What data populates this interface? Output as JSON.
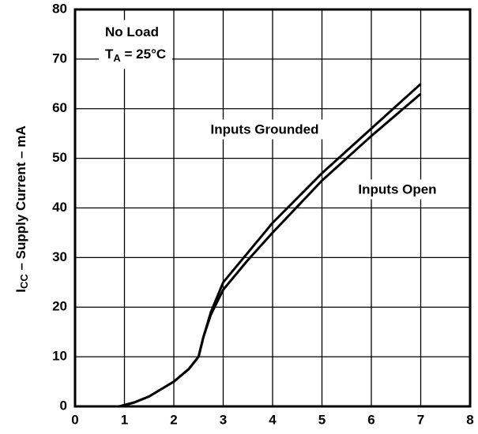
{
  "chart_data": {
    "type": "line",
    "ylabel": {
      "main": "I",
      "sub": "CC",
      "rest": " – Supply Current – mA"
    },
    "annotations": [
      {
        "main": "No Load"
      },
      {
        "main": "T",
        "sub": "A",
        "rest": " = 25°C"
      }
    ],
    "x": [
      0.9,
      1.2,
      1.5,
      2,
      2.3,
      2.5,
      2.6,
      2.75,
      3,
      3.5,
      4,
      5,
      6,
      7
    ],
    "series": [
      {
        "name": "Inputs Grounded",
        "color": "#000000",
        "values": [
          0,
          0.8,
          2,
          5,
          7.5,
          10,
          14,
          19,
          25,
          31,
          37,
          47,
          56,
          65
        ]
      },
      {
        "name": "Inputs Open",
        "color": "#000000",
        "values": [
          0,
          0.8,
          2,
          5,
          7.5,
          10,
          14,
          18.5,
          23.5,
          29.5,
          35,
          45.5,
          54.5,
          63
        ]
      }
    ],
    "xlim": [
      0,
      8
    ],
    "xticks": [
      0,
      1,
      2,
      3,
      4,
      5,
      6,
      7,
      8
    ],
    "ylim": [
      0,
      80
    ],
    "yticks": [
      0,
      10,
      20,
      30,
      40,
      50,
      60,
      70,
      80
    ],
    "grid": true
  }
}
